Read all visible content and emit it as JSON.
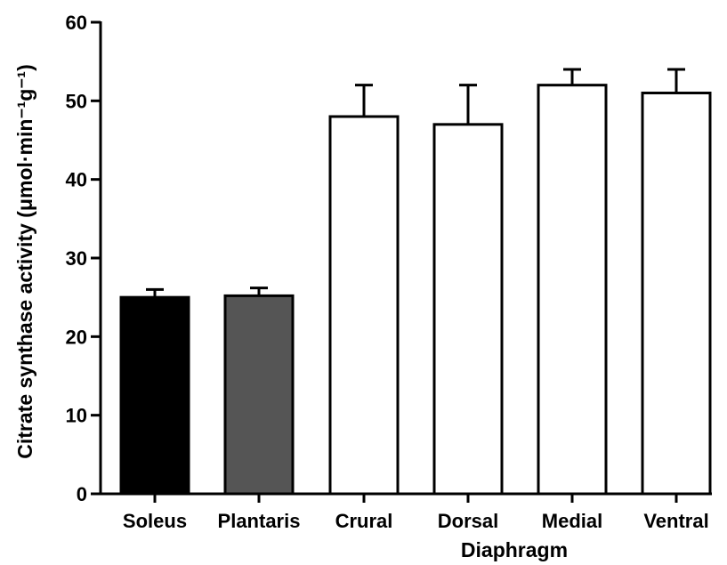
{
  "chart_data": {
    "type": "bar",
    "categories": [
      "Soleus",
      "Plantaris",
      "Crural",
      "Dorsal",
      "Medial",
      "Ventral"
    ],
    "values": [
      25,
      25.2,
      48,
      47,
      52,
      51
    ],
    "errors": [
      1,
      1,
      4,
      5,
      2,
      3
    ],
    "bar_colors": [
      "#000000",
      "#555555",
      "#ffffff",
      "#ffffff",
      "#ffffff",
      "#ffffff"
    ],
    "ylabel": "Citrate synthase activity (μmol·min⁻¹g⁻¹)",
    "group_label": "Diaphragm",
    "ylim": [
      0,
      60
    ],
    "yticks": [
      0,
      10,
      20,
      30,
      40,
      50,
      60
    ],
    "grid": false,
    "legend": "none"
  }
}
